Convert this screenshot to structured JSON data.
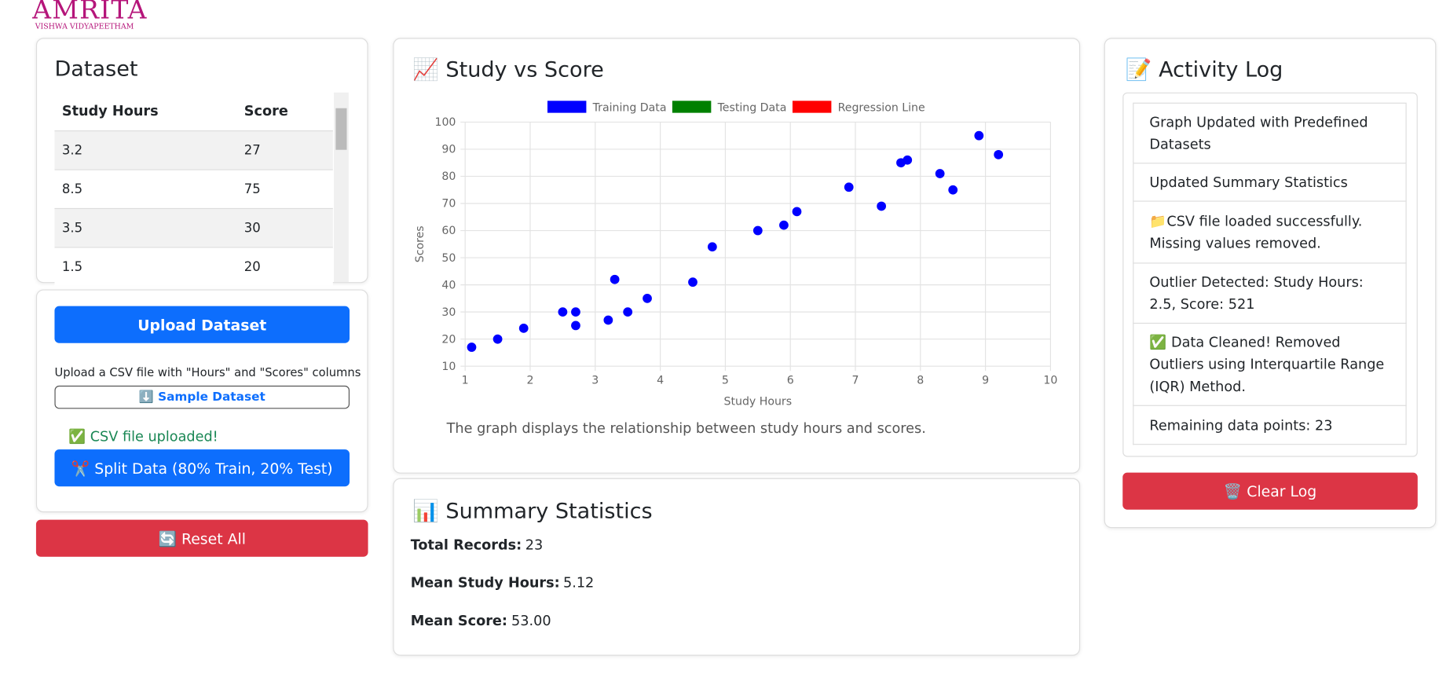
{
  "logo": {
    "name": "AMRITA",
    "tagline": "VISHWA VIDYAPEETHAM"
  },
  "dataset": {
    "title": "Dataset",
    "columns": [
      "Study Hours",
      "Score"
    ],
    "rows": [
      [
        "3.2",
        "27"
      ],
      [
        "8.5",
        "75"
      ],
      [
        "3.5",
        "30"
      ],
      [
        "1.5",
        "20"
      ]
    ]
  },
  "upload": {
    "button": "Upload Dataset",
    "hint": "Upload a CSV file with \"Hours\" and \"Scores\" columns",
    "sample": "⬇️ Sample Dataset",
    "status": "✅ CSV file uploaded!",
    "split": "✂️ Split Data (80% Train, 20% Test)"
  },
  "reset": "🔄 Reset All",
  "chart_data": {
    "type": "scatter",
    "title": "📈 Study vs Score",
    "x_label": "Study Hours",
    "y_label": "Scores",
    "caption": "The graph displays the relationship between study hours and scores.",
    "series": [
      {
        "name": "Training Data",
        "color": "#0000ff",
        "x": [
          1.1,
          1.5,
          1.9,
          2.5,
          2.7,
          2.7,
          3.2,
          3.3,
          3.5,
          3.8,
          4.5,
          4.8,
          5.5,
          5.9,
          6.1,
          6.9,
          7.4,
          7.7,
          7.8,
          8.3,
          8.5,
          8.9,
          9.2
        ],
        "values": [
          17,
          20,
          24,
          30,
          30,
          25,
          27,
          42,
          30,
          35,
          41,
          54,
          60,
          62,
          67,
          76,
          69,
          85,
          86,
          81,
          75,
          95,
          88
        ]
      },
      {
        "name": "Testing Data",
        "color": "#008000",
        "x": [],
        "values": []
      },
      {
        "name": "Regression Line",
        "color": "#ff0000",
        "x": [],
        "values": []
      }
    ],
    "xlim": [
      1,
      10
    ],
    "xticks": [
      1,
      2,
      3,
      4,
      5,
      6,
      7,
      8,
      9,
      10
    ],
    "ylim": [
      10,
      100
    ],
    "yticks": [
      10,
      20,
      30,
      40,
      50,
      60,
      70,
      80,
      90,
      100
    ],
    "grid": true,
    "legend": "top"
  },
  "summary": {
    "title": "📊 Summary Statistics",
    "items": [
      {
        "label": "Total Records:",
        "value": "23"
      },
      {
        "label": "Mean Study Hours:",
        "value": "5.12"
      },
      {
        "label": "Mean Score:",
        "value": "53.00"
      }
    ]
  },
  "log": {
    "title": "📝 Activity Log",
    "entries": [
      "Graph Updated with Predefined Datasets",
      "Updated Summary Statistics",
      "📁CSV file loaded successfully. Missing values removed.",
      "Outlier Detected: Study Hours: 2.5, Score: 521",
      "✅ Data Cleaned! Removed Outliers using Interquartile Range (IQR) Method.",
      "Remaining data points: 23"
    ],
    "clear": "🗑️ Clear Log"
  }
}
